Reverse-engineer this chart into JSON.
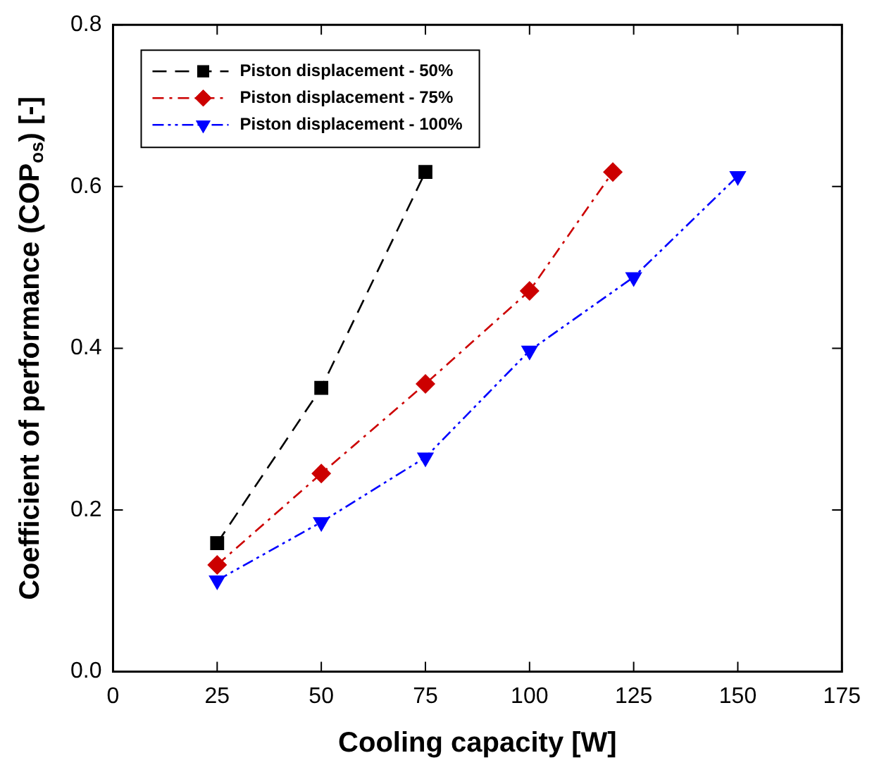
{
  "chart_data": {
    "type": "line",
    "xlabel": "Cooling capacity [W]",
    "ylabel": "Coefficient of performance (COP$_{os}$) [-]",
    "xlim": [
      0,
      175
    ],
    "xticks": [
      0,
      25,
      50,
      75,
      100,
      125,
      150,
      175
    ],
    "ylim": [
      0,
      0.8
    ],
    "yticks": [
      {
        "value": 0,
        "label": "0.0"
      },
      0.2,
      0.4,
      0.6,
      0.8
    ],
    "grid": false,
    "legend": "top left",
    "series": [
      {
        "name": "Piston displacement - 50%",
        "color": "#000000",
        "marker": "square",
        "line_style": "dashed",
        "x": [
          25,
          50,
          75
        ],
        "values": [
          0.159,
          0.351,
          0.618
        ]
      },
      {
        "name": "Piston displacement - 75%",
        "color": "#cc0000",
        "marker": "diamond",
        "line_style": "dashdot",
        "x": [
          25,
          50,
          75,
          100,
          120
        ],
        "values": [
          0.132,
          0.245,
          0.356,
          0.471,
          0.618
        ]
      },
      {
        "name": "Piston displacement - 100%",
        "color": "#0000ff",
        "marker": "triangle",
        "line_style": "dashdotdot",
        "x": [
          25,
          50,
          75,
          100,
          125,
          150
        ],
        "values": [
          0.113,
          0.185,
          0.265,
          0.397,
          0.488,
          0.613
        ]
      }
    ]
  }
}
